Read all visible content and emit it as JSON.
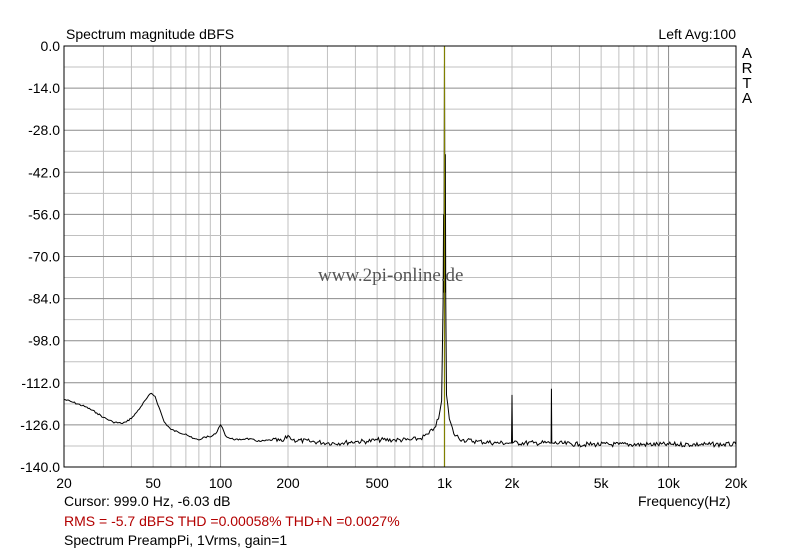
{
  "chart_data": {
    "type": "line",
    "title": "Spectrum magnitude dBFS",
    "channel_info": "Left  Avg:100",
    "brand": [
      "A",
      "R",
      "T",
      "A"
    ],
    "xlabel": "Frequency(Hz)",
    "x_scale": "log",
    "xlim": [
      20,
      20000
    ],
    "ylim": [
      -140,
      0
    ],
    "x_ticks": [
      {
        "value": 20,
        "label": "20"
      },
      {
        "value": 50,
        "label": "50"
      },
      {
        "value": 100,
        "label": "100"
      },
      {
        "value": 200,
        "label": "200"
      },
      {
        "value": 500,
        "label": "500"
      },
      {
        "value": 1000,
        "label": "1k"
      },
      {
        "value": 2000,
        "label": "2k"
      },
      {
        "value": 5000,
        "label": "5k"
      },
      {
        "value": 10000,
        "label": "10k"
      },
      {
        "value": 20000,
        "label": "20k"
      }
    ],
    "y_ticks": [
      {
        "value": 0,
        "label": "0.0"
      },
      {
        "value": -14,
        "label": "-14.0"
      },
      {
        "value": -28,
        "label": "-28.0"
      },
      {
        "value": -42,
        "label": "-42.0"
      },
      {
        "value": -56,
        "label": "-56.0"
      },
      {
        "value": -70,
        "label": "-70.0"
      },
      {
        "value": -84,
        "label": "-84.0"
      },
      {
        "value": -98,
        "label": "-98.0"
      },
      {
        "value": -112,
        "label": "-112.0"
      },
      {
        "value": -126,
        "label": "-126.0"
      },
      {
        "value": -140,
        "label": "-140.0"
      }
    ],
    "grid": true,
    "cursor_frequency": 999,
    "series": [
      {
        "color": "#000000",
        "points": [
          [
            20,
            -117.5
          ],
          [
            22,
            -118.5
          ],
          [
            25,
            -120
          ],
          [
            28,
            -122
          ],
          [
            30,
            -123.5
          ],
          [
            33,
            -125
          ],
          [
            36,
            -125.5
          ],
          [
            38,
            -125
          ],
          [
            41,
            -123
          ],
          [
            44,
            -120
          ],
          [
            47,
            -117
          ],
          [
            49,
            -115.5
          ],
          [
            51,
            -116.5
          ],
          [
            53,
            -120
          ],
          [
            56,
            -125
          ],
          [
            60,
            -127.5
          ],
          [
            65,
            -128.5
          ],
          [
            70,
            -129
          ],
          [
            75,
            -130.5
          ],
          [
            80,
            -131
          ],
          [
            85,
            -130
          ],
          [
            90,
            -130
          ],
          [
            95,
            -129
          ],
          [
            98,
            -127
          ],
          [
            100,
            -126
          ],
          [
            102,
            -127
          ],
          [
            105,
            -129.5
          ],
          [
            110,
            -130.5
          ],
          [
            120,
            -131
          ],
          [
            130,
            -130.5
          ],
          [
            150,
            -131.5
          ],
          [
            170,
            -131
          ],
          [
            190,
            -131.5
          ],
          [
            200,
            -129.5
          ],
          [
            210,
            -131
          ],
          [
            250,
            -131.5
          ],
          [
            300,
            -132
          ],
          [
            350,
            -132
          ],
          [
            400,
            -131.5
          ],
          [
            450,
            -131.5
          ],
          [
            500,
            -131
          ],
          [
            600,
            -131
          ],
          [
            700,
            -131
          ],
          [
            780,
            -130.5
          ],
          [
            850,
            -129
          ],
          [
            900,
            -127
          ],
          [
            940,
            -124
          ],
          [
            970,
            -118
          ],
          [
            985,
            -85
          ],
          [
            990,
            -56
          ],
          [
            993,
            -82
          ],
          [
            997,
            -30
          ],
          [
            999,
            -6
          ],
          [
            1001,
            -30
          ],
          [
            1005,
            -82
          ],
          [
            1008,
            -36
          ],
          [
            1012,
            -83
          ],
          [
            1020,
            -116
          ],
          [
            1050,
            -124
          ],
          [
            1100,
            -129
          ],
          [
            1200,
            -131
          ],
          [
            1400,
            -131.5
          ],
          [
            1700,
            -132
          ],
          [
            1950,
            -132
          ],
          [
            1990,
            -132
          ],
          [
            2000,
            -116
          ],
          [
            2010,
            -132
          ],
          [
            2500,
            -132
          ],
          [
            2950,
            -132
          ],
          [
            2990,
            -132
          ],
          [
            3000,
            -114
          ],
          [
            3010,
            -132
          ],
          [
            4000,
            -132.5
          ],
          [
            6000,
            -132.5
          ],
          [
            10000,
            -132.5
          ],
          [
            15000,
            -132.5
          ],
          [
            20000,
            -132.5
          ]
        ]
      }
    ]
  },
  "cursor_text": "Cursor:   999.0 Hz, -6.03 dB",
  "stats_text": "RMS =   -5.7 dBFS   THD =0.00058%   THD+N =0.0027%",
  "measurement_text": "Spectrum PreampPi, 1Vrms, gain=1",
  "watermark": "www.2pi-online.de",
  "colors": {
    "trace": "#000000",
    "cursor": "#808000",
    "grid": "#c0c0c0",
    "stats": "#b30000"
  }
}
